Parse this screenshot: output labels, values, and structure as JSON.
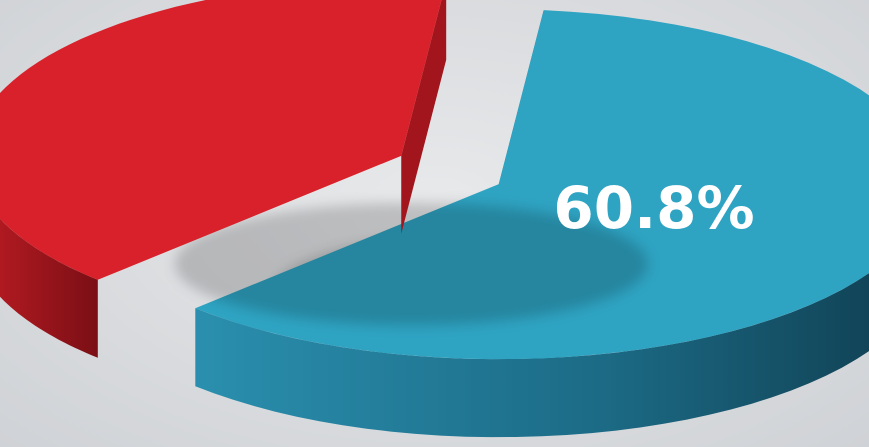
{
  "chart_data": {
    "type": "pie",
    "style": "3d-exploded",
    "series": [
      {
        "values": [
          60.8,
          39.2
        ],
        "colors": [
          "#2ea3c2",
          "#d8212a"
        ]
      }
    ],
    "data_labels": [
      {
        "text": "60.8%",
        "slice": 0
      }
    ]
  }
}
